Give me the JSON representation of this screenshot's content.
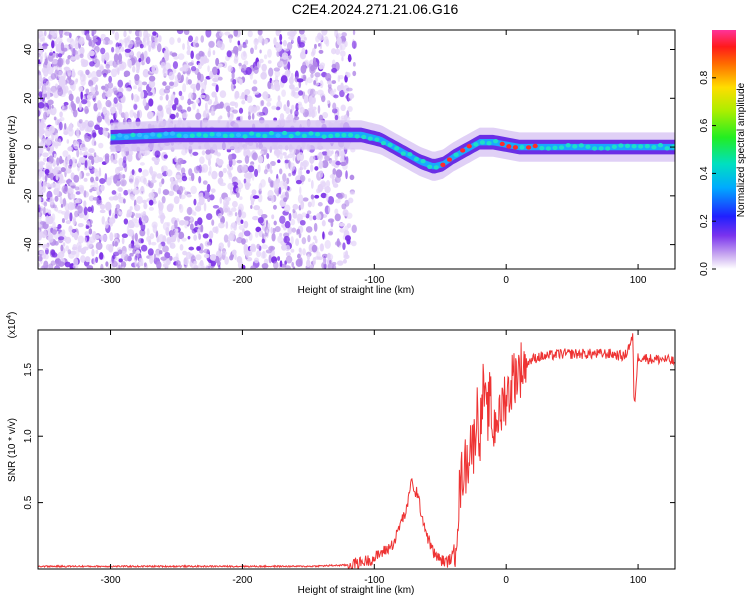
{
  "title": "C2E4.2024.271.21.06.G16",
  "colors": {
    "snr_line": "#ee3333",
    "track_low": "#5a1bd6",
    "track_mid": "#1de0c8",
    "track_high": "#ff2a2a"
  },
  "chart_data": [
    {
      "type": "heatmap",
      "xlabel": "Height of straight line (km)",
      "ylabel": "Frequency (Hz)",
      "xlim": [
        -355,
        128
      ],
      "ylim": [
        -50,
        48
      ],
      "xticks": [
        -300,
        -200,
        -100,
        0,
        100
      ],
      "yticks": [
        -40,
        -20,
        0,
        20,
        40
      ],
      "colorbar": {
        "label": "Normalized spectral amplitude",
        "range": [
          0,
          1
        ],
        "ticks": [
          "0.0",
          "0.2",
          "0.4",
          "0.6",
          "0.8"
        ],
        "tick_values": [
          0.0,
          0.2,
          0.4,
          0.6,
          0.8
        ]
      },
      "ridge": {
        "x": [
          -300,
          -250,
          -200,
          -150,
          -130,
          -110,
          -95,
          -85,
          -75,
          -65,
          -55,
          -48,
          -40,
          -30,
          -20,
          -10,
          0,
          10,
          25,
          50,
          90,
          128
        ],
        "frequency": [
          4,
          5,
          5,
          5,
          5,
          5,
          3,
          0,
          -3,
          -6,
          -8,
          -7,
          -4,
          -1,
          2,
          2,
          1,
          0,
          0,
          0,
          0,
          0
        ]
      }
    },
    {
      "type": "line",
      "xlabel": "Height of straight line (km)",
      "ylabel": "SNR (10 * v/v)",
      "scale_label": "(x10",
      "scale_exp": "4",
      "xlim": [
        -355,
        128
      ],
      "ylim": [
        0,
        1.8
      ],
      "xticks": [
        -300,
        -200,
        -100,
        0,
        100
      ],
      "yticks": [
        "0.5",
        "1.0",
        "1.5"
      ],
      "ytick_values": [
        0.5,
        1.0,
        1.5
      ],
      "series": [
        {
          "x": [
            -355,
            -250,
            -150,
            -120,
            -110,
            -100,
            -95,
            -90,
            -85,
            -80,
            -75,
            -72,
            -70,
            -68,
            -65,
            -60,
            -55,
            -50,
            -45,
            -40,
            -35,
            -32,
            -30,
            -27,
            -25,
            -22,
            -20,
            -17,
            -15,
            -12,
            -10,
            -7,
            -5,
            -2,
            0,
            3,
            5,
            10,
            15,
            20,
            25,
            30,
            40,
            50,
            60,
            70,
            80,
            90,
            96,
            97,
            100,
            110,
            120,
            128
          ],
          "y": [
            0.02,
            0.02,
            0.02,
            0.03,
            0.05,
            0.08,
            0.12,
            0.15,
            0.2,
            0.35,
            0.45,
            0.7,
            0.55,
            0.6,
            0.45,
            0.25,
            0.12,
            0.07,
            0.05,
            0.1,
            0.6,
            0.8,
            0.75,
            1.0,
            0.9,
            1.2,
            1.0,
            1.4,
            1.1,
            1.3,
            1.0,
            1.2,
            1.1,
            1.3,
            1.3,
            1.35,
            1.45,
            1.5,
            1.55,
            1.58,
            1.6,
            1.6,
            1.62,
            1.62,
            1.62,
            1.62,
            1.62,
            1.6,
            1.75,
            1.2,
            1.6,
            1.58,
            1.58,
            1.56
          ]
        }
      ]
    }
  ]
}
